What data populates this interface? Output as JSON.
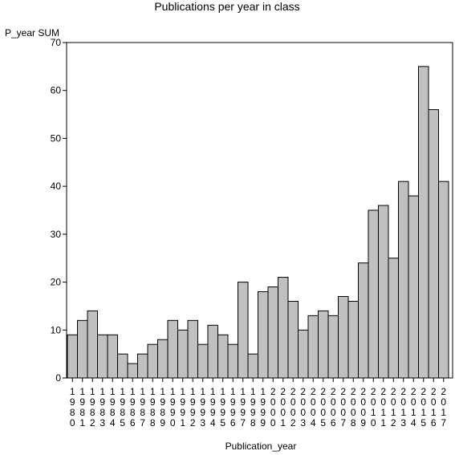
{
  "chart_data": {
    "type": "bar",
    "title": "Publications per year in class",
    "ylabel": "P_year SUM",
    "xlabel": "Publication_year",
    "ylim": [
      0,
      70
    ],
    "yticks": [
      0,
      10,
      20,
      30,
      40,
      50,
      60,
      70
    ],
    "grid": false,
    "colors": {
      "bar_fill": "#c0c0c0",
      "bar_stroke": "#000000",
      "background": "#ffffff"
    },
    "categories": [
      "1980",
      "1981",
      "1982",
      "1983",
      "1984",
      "1985",
      "1986",
      "1987",
      "1988",
      "1989",
      "1990",
      "1991",
      "1992",
      "1993",
      "1994",
      "1995",
      "1996",
      "1997",
      "1998",
      "1999",
      "2000",
      "2001",
      "2002",
      "2003",
      "2004",
      "2005",
      "2006",
      "2007",
      "2008",
      "2009",
      "2010",
      "2011",
      "2012",
      "2013",
      "2014",
      "2015",
      "2016",
      "2017"
    ],
    "values": [
      9,
      12,
      14,
      9,
      9,
      5,
      3,
      5,
      7,
      8,
      12,
      10,
      12,
      7,
      11,
      9,
      7,
      20,
      5,
      18,
      19,
      21,
      16,
      10,
      13,
      14,
      13,
      17,
      16,
      24,
      35,
      36,
      25,
      41,
      38,
      65,
      56,
      41
    ]
  }
}
